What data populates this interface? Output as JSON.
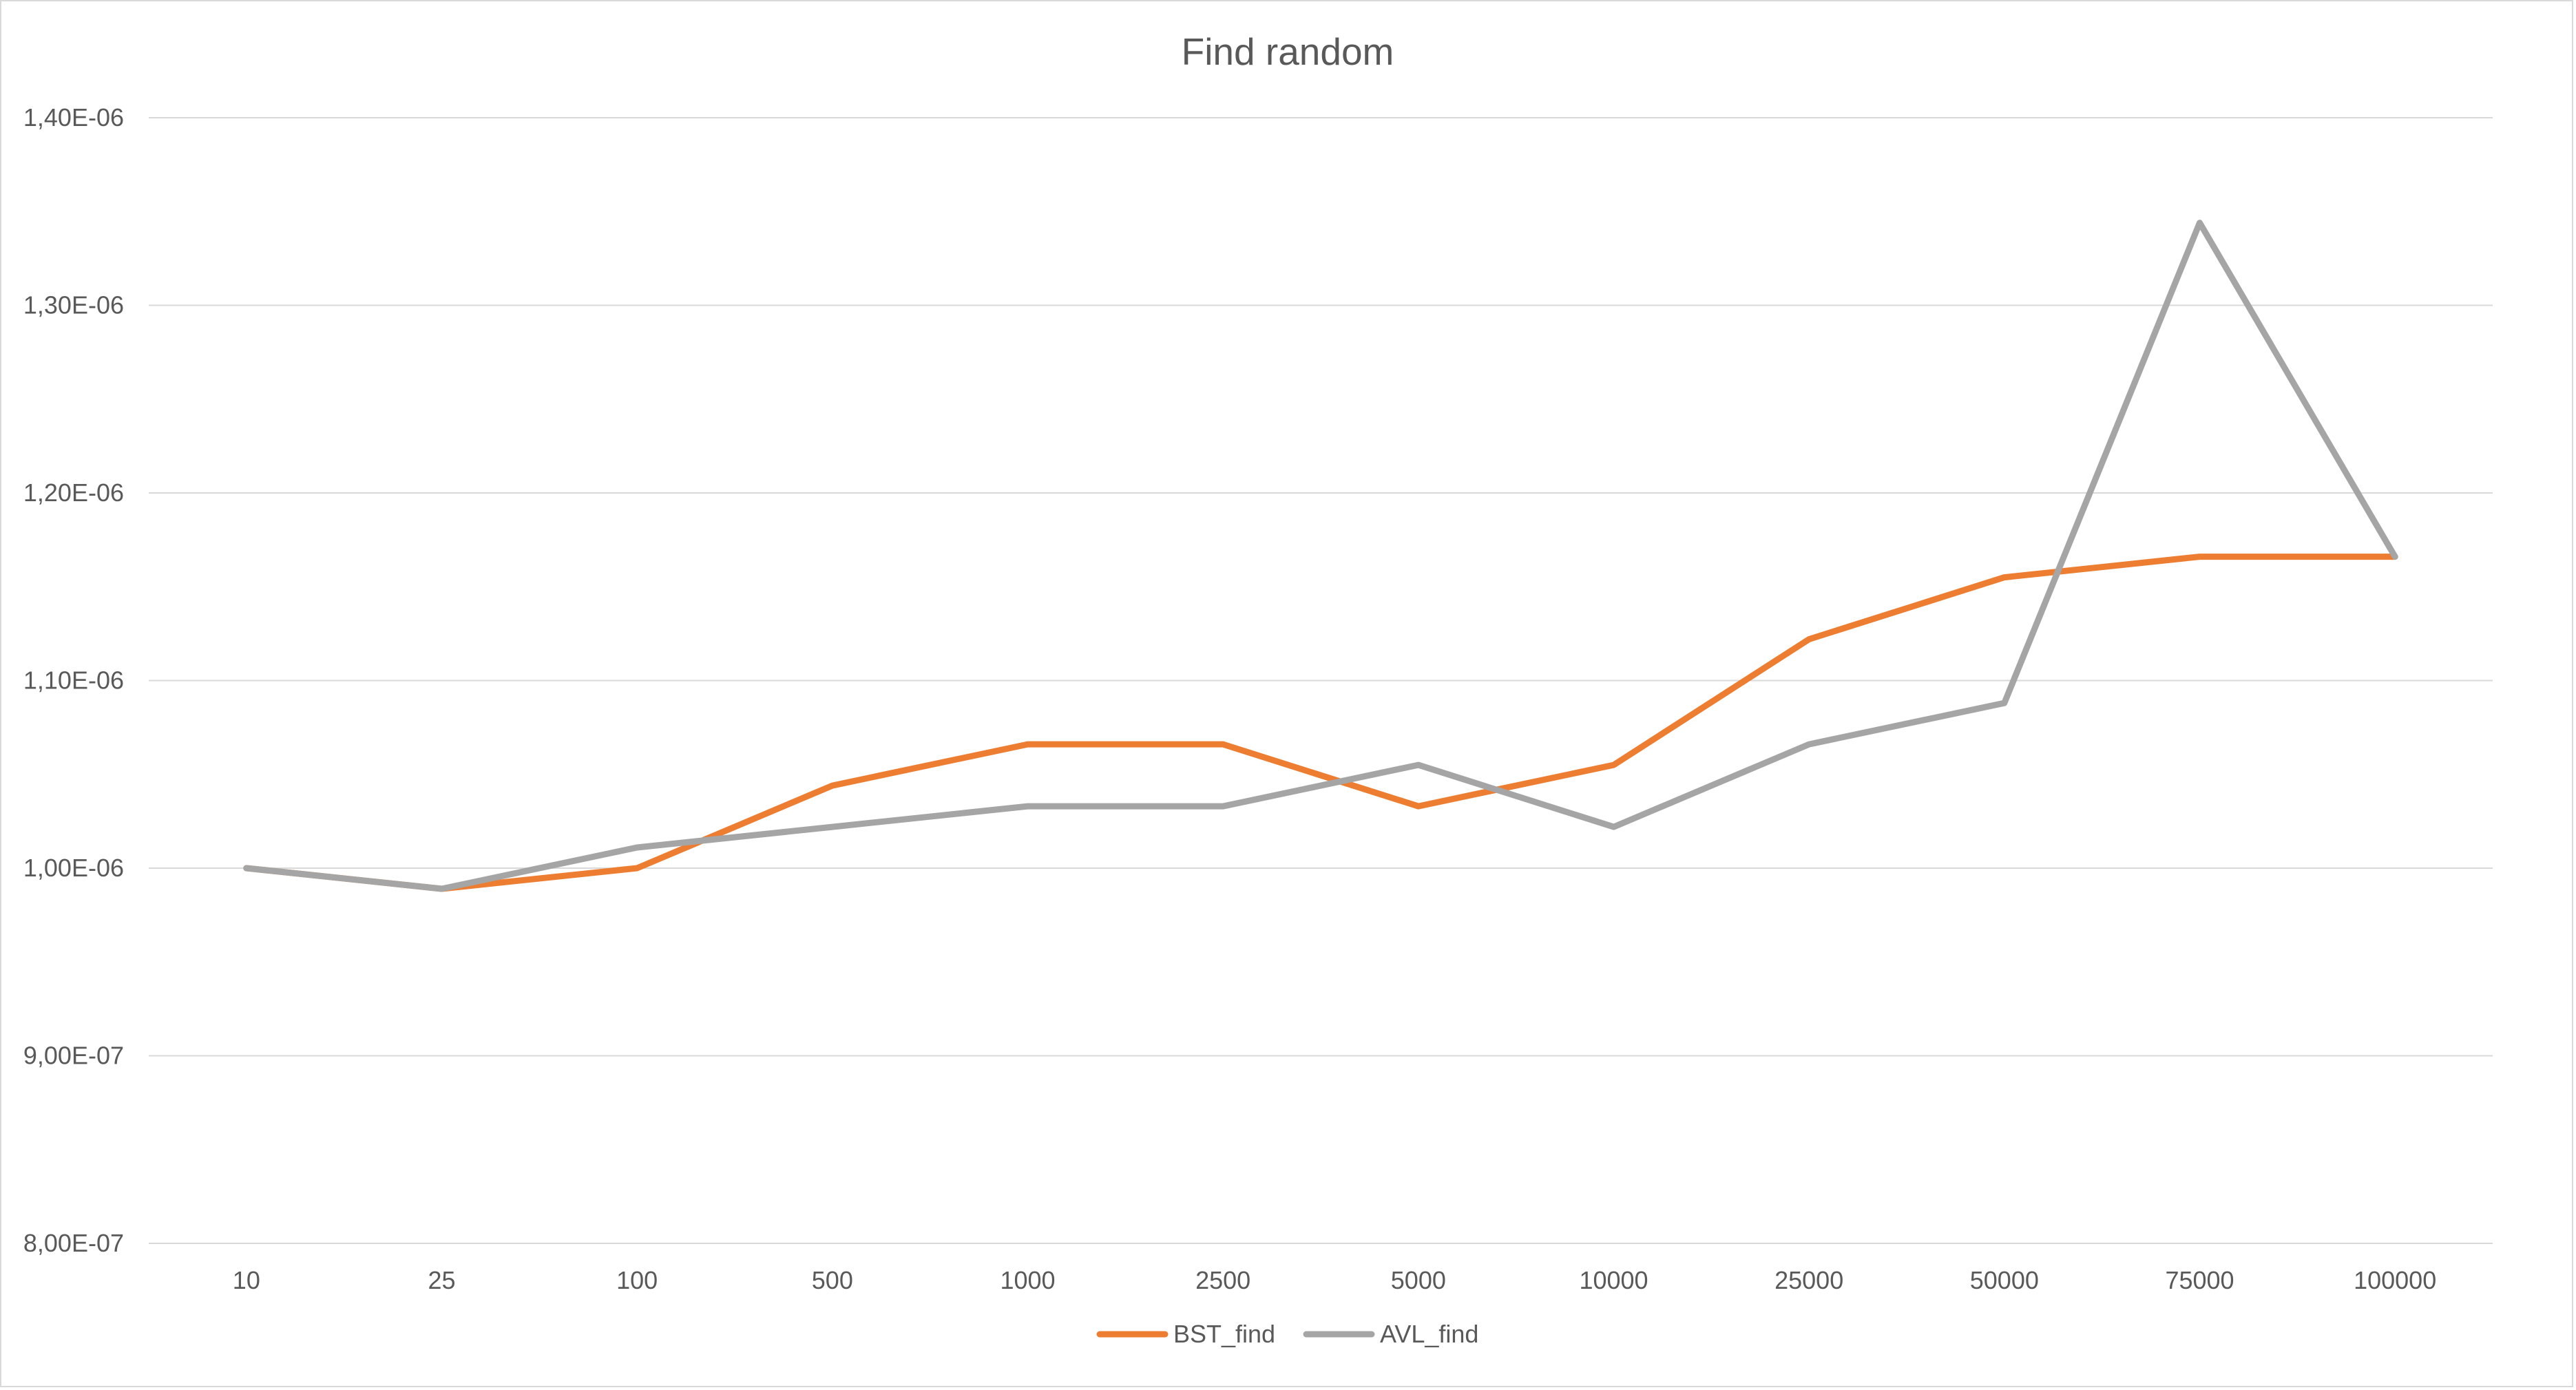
{
  "chart_data": {
    "type": "line",
    "title": "Find random",
    "xlabel": "",
    "ylabel": "",
    "categories": [
      "10",
      "25",
      "100",
      "500",
      "1000",
      "2500",
      "5000",
      "10000",
      "25000",
      "50000",
      "75000",
      "100000"
    ],
    "y_ticks": [
      "8,00E-07",
      "9,00E-07",
      "1,00E-06",
      "1,10E-06",
      "1,20E-06",
      "1,30E-06",
      "1,40E-06"
    ],
    "ylim": [
      8e-07,
      1.4e-06
    ],
    "grid": true,
    "legend_position": "bottom",
    "series": [
      {
        "name": "BST_find",
        "color": "#ED7D31",
        "values": [
          1e-06,
          9.89e-07,
          1e-06,
          1.044e-06,
          1.066e-06,
          1.066e-06,
          1.033e-06,
          1.055e-06,
          1.122e-06,
          1.155e-06,
          1.166e-06,
          1.166e-06
        ]
      },
      {
        "name": "AVL_find",
        "color": "#A5A5A5",
        "values": [
          1e-06,
          9.89e-07,
          1.011e-06,
          1.022e-06,
          1.033e-06,
          1.033e-06,
          1.055e-06,
          1.022e-06,
          1.066e-06,
          1.088e-06,
          1.344e-06,
          1.166e-06
        ]
      }
    ],
    "colors": {
      "grid": "#d9d9d9",
      "text": "#595959",
      "border": "#d9d9d9"
    }
  }
}
